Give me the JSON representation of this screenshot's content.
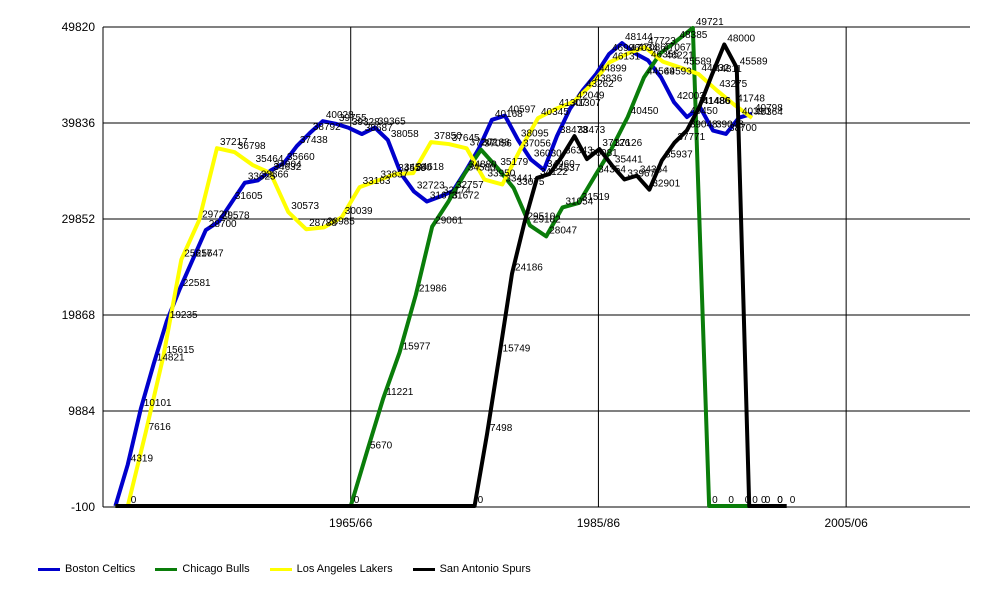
{
  "chart_data": {
    "type": "line",
    "title": "",
    "xlabel": "",
    "ylabel": "",
    "ylim": [
      -100,
      49820
    ],
    "yticks": [
      "-100",
      "9884",
      "19868",
      "29852",
      "39836",
      "49820"
    ],
    "xticks": [
      {
        "label": "1965/66",
        "index": 20
      },
      {
        "label": "1985/86",
        "index": 40
      },
      {
        "label": "2005/06",
        "index": 60
      }
    ],
    "x_index_range": [
      0,
      70
    ],
    "grid": true,
    "legend_position": "bottom-left",
    "series": [
      {
        "name": "Boston Celtics",
        "color": "#0000cc",
        "values": [
          4319,
          10101,
          14821,
          19235,
          22581,
          25647,
          28700,
          29578,
          31605,
          33625,
          33866,
          34904,
          35660,
          37438,
          38792,
          40028,
          39755,
          39328,
          38687,
          39365,
          38058,
          34580,
          32723,
          31673,
          32174,
          32757,
          34880,
          37188,
          40168,
          40597,
          38095,
          36030,
          34960,
          38473,
          41307,
          43262,
          44899,
          46996,
          48144,
          47086,
          46355,
          44593,
          42003,
          40450,
          41486,
          39048,
          38700,
          40390,
          40798
        ]
      },
      {
        "name": "Chicago Bulls",
        "color": "#0a7d0a",
        "values": [
          0,
          5670,
          11221,
          15977,
          21986,
          29061,
          31672,
          34580,
          37056,
          35179,
          33075,
          29182,
          28047,
          31054,
          31519,
          34354,
          37126,
          40450,
          44569,
          47067,
          48385,
          49721,
          0,
          0,
          0,
          0,
          0
        ]
      },
      {
        "name": "Los Angeles Lakers",
        "color": "#ffff00",
        "values": [
          0,
          7616,
          15615,
          25617,
          29720,
          37217,
          36798,
          35464,
          34632,
          30573,
          28788,
          28985,
          30039,
          33163,
          33837,
          34515,
          34618,
          37850,
          37645,
          37202,
          33950,
          33441,
          37056,
          40345,
          41307,
          42049,
          43836,
          46131,
          47034,
          47723,
          46221,
          45589,
          44932,
          43275,
          41748,
          40364
        ]
      },
      {
        "name": "San Antonio Spurs",
        "color": "#000000",
        "values": [
          0,
          7498,
          15749,
          24186,
          29510,
          34122,
          34537,
          36343,
          38473,
          36081,
          37126,
          35441,
          33967,
          34354,
          32901,
          35937,
          37771,
          39048,
          41486,
          44811,
          48000,
          45589,
          0,
          0,
          0,
          0
        ]
      }
    ],
    "annotations": [
      "4319",
      "10101",
      "14821",
      "19235",
      "22581",
      "25647",
      "28700",
      "29578",
      "29720",
      "31605",
      "33625",
      "33866",
      "34904",
      "34632",
      "35660",
      "37438",
      "38792",
      "40028",
      "39755",
      "39328",
      "38687",
      "39365",
      "38058",
      "37850",
      "37645",
      "37202",
      "37188",
      "40168",
      "40597",
      "38095",
      "36030",
      "34960",
      "36343",
      "38473",
      "36081",
      "37126",
      "35441",
      "33967",
      "34354",
      "32901",
      "35937",
      "37771",
      "39048",
      "41486",
      "44811",
      "45589",
      "44932",
      "40390",
      "40798",
      "40364",
      "46221",
      "48774",
      "49037",
      "49721",
      "48385",
      "47723",
      "46996",
      "48144",
      "47034",
      "46131",
      "43836",
      "43262",
      "44899",
      "41307",
      "40345",
      "39193",
      "39458",
      "42049",
      "42003",
      "40450",
      "44569",
      "46355",
      "47067",
      "44908",
      "48000",
      "43275",
      "41748",
      "40846",
      "7616",
      "15615",
      "25617",
      "37217",
      "36798",
      "35464",
      "30573",
      "28788",
      "28985",
      "30039",
      "33163",
      "33837",
      "34515",
      "34618",
      "34660",
      "35123",
      "33803",
      "32523",
      "33903",
      "34580",
      "32324",
      "32757",
      "32589",
      "34548",
      "30323",
      "29510",
      "24186",
      "15749",
      "7498",
      "37056",
      "35179",
      "33441",
      "34122",
      "34537",
      "33075",
      "29182",
      "28390",
      "28047",
      "31054",
      "31519",
      "5670",
      "11221",
      "15977",
      "21986",
      "29061",
      "31672",
      "0"
    ]
  }
}
